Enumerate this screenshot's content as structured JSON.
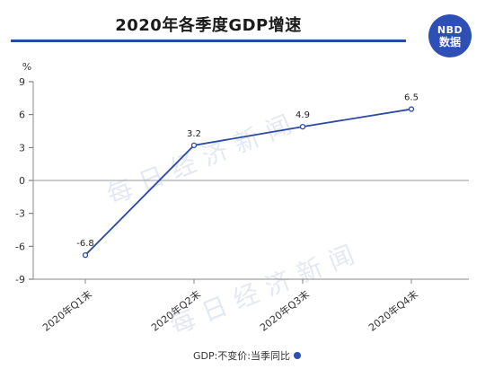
{
  "header": {
    "title": "2020年各季度GDP增速"
  },
  "logo": {
    "top_text": "NBD",
    "bottom_text": "数据"
  },
  "footer": {
    "note": "GDP:不变价:当季同比"
  },
  "watermark": {
    "text": "每日经济新闻"
  },
  "colors": {
    "line": "#2a4aa8",
    "accent": "#2e4fb3",
    "axis_text": "#333333",
    "zero_line": "#999999"
  },
  "chart_data": {
    "type": "line",
    "title": "2020年各季度GDP增速",
    "ylabel": "%",
    "xlabel": "",
    "ylim": [
      -9,
      9
    ],
    "yticks": [
      9,
      6,
      3,
      0,
      -3,
      -6,
      -9
    ],
    "categories": [
      "2020年Q1末",
      "2020年Q2末",
      "2020年Q3末",
      "2020年Q4末"
    ],
    "series": [
      {
        "values": [
          -6.8,
          3.2,
          4.9,
          6.5
        ],
        "labels": [
          "-6.8",
          "3.2",
          "4.9",
          "6.5"
        ]
      }
    ],
    "grid": false,
    "legend": "none"
  }
}
